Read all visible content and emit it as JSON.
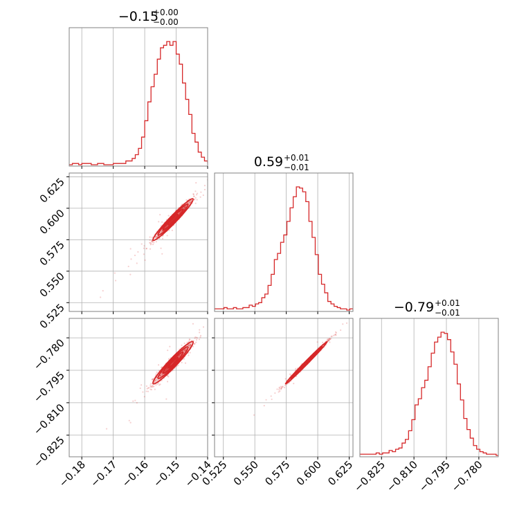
{
  "colors": {
    "accent": "#d62728",
    "grid": "#b0b0b0",
    "frame": "#808080"
  },
  "params": [
    {
      "title": {
        "value": "−0.15",
        "plus": "+0.00",
        "minus": "−0.00"
      },
      "range": [
        -0.184,
        -0.14
      ],
      "ticks": [
        {
          "v": -0.18,
          "label": "−0.18"
        },
        {
          "v": -0.17,
          "label": "−0.17"
        },
        {
          "v": -0.16,
          "label": "−0.16"
        },
        {
          "v": -0.15,
          "label": "−0.15"
        },
        {
          "v": -0.14,
          "label": "−0.14"
        }
      ],
      "center": -0.151,
      "sd": 0.0032
    },
    {
      "title": {
        "value": "0.59",
        "plus": "+0.01",
        "minus": "−0.01"
      },
      "range": [
        0.518,
        0.628
      ],
      "ticks": [
        {
          "v": 0.525,
          "label": "0.525"
        },
        {
          "v": 0.55,
          "label": "0.550"
        },
        {
          "v": 0.575,
          "label": "0.575"
        },
        {
          "v": 0.6,
          "label": "0.600"
        },
        {
          "v": 0.625,
          "label": "0.625"
        }
      ],
      "center": 0.591,
      "sd": 0.0083
    },
    {
      "title": {
        "value": "−0.79",
        "plus": "+0.01",
        "minus": "−0.01"
      },
      "range": [
        -0.835,
        -0.771
      ],
      "ticks": [
        {
          "v": -0.825,
          "label": "−0.825"
        },
        {
          "v": -0.81,
          "label": "−0.810"
        },
        {
          "v": -0.795,
          "label": "−0.795"
        },
        {
          "v": -0.78,
          "label": "−0.780"
        }
      ],
      "center": -0.7915,
      "sd": 0.0049
    }
  ],
  "chart_data": {
    "type": "corner",
    "title": "",
    "histograms": [
      {
        "param": 0,
        "bin_edges": [
          -0.184,
          -0.183,
          -0.182,
          -0.181,
          -0.18,
          -0.179,
          -0.178,
          -0.177,
          -0.176,
          -0.175,
          -0.174,
          -0.173,
          -0.172,
          -0.171,
          -0.17,
          -0.169,
          -0.168,
          -0.167,
          -0.166,
          -0.165,
          -0.164,
          -0.163,
          -0.162,
          -0.161,
          -0.16,
          -0.159,
          -0.158,
          -0.157,
          -0.156,
          -0.155,
          -0.154,
          -0.153,
          -0.152,
          -0.151,
          -0.15,
          -0.149,
          -0.148,
          -0.147,
          -0.146,
          -0.145,
          -0.144,
          -0.143,
          -0.142,
          -0.141,
          -0.14
        ],
        "counts": [
          0,
          1,
          1,
          0,
          1,
          1,
          1,
          0,
          0,
          1,
          1,
          0,
          0,
          0,
          1,
          1,
          1,
          1,
          3,
          3,
          5,
          8,
          13,
          22,
          35,
          50,
          62,
          72,
          84,
          93,
          95,
          98,
          95,
          98,
          88,
          80,
          65,
          52,
          40,
          25,
          18,
          10,
          6,
          3,
          1
        ]
      },
      {
        "param": 1,
        "bin_edges": [
          0.518,
          0.5205,
          0.523,
          0.5255,
          0.528,
          0.5305,
          0.533,
          0.5355,
          0.538,
          0.5405,
          0.543,
          0.5455,
          0.548,
          0.5505,
          0.553,
          0.5555,
          0.558,
          0.5605,
          0.563,
          0.5655,
          0.568,
          0.5705,
          0.573,
          0.5755,
          0.578,
          0.5805,
          0.583,
          0.5855,
          0.588,
          0.5905,
          0.593,
          0.5955,
          0.598,
          0.6005,
          0.603,
          0.6055,
          0.608,
          0.6105,
          0.613,
          0.6155,
          0.618,
          0.6205,
          0.623,
          0.6255,
          0.628
        ],
        "counts": [
          1,
          1,
          1,
          2,
          1,
          1,
          2,
          1,
          1,
          2,
          2,
          4,
          3,
          5,
          6,
          10,
          13,
          20,
          29,
          41,
          46,
          55,
          61,
          72,
          83,
          92,
          100,
          99,
          96,
          88,
          72,
          59,
          45,
          29,
          21,
          14,
          7,
          5,
          3,
          2,
          1,
          1,
          0,
          1
        ]
      },
      {
        "param": 2,
        "bin_edges": [
          -0.835,
          -0.8335,
          -0.832,
          -0.8305,
          -0.829,
          -0.8275,
          -0.826,
          -0.8245,
          -0.823,
          -0.8215,
          -0.82,
          -0.8185,
          -0.817,
          -0.8155,
          -0.814,
          -0.8125,
          -0.811,
          -0.8095,
          -0.808,
          -0.8065,
          -0.805,
          -0.8035,
          -0.802,
          -0.8005,
          -0.799,
          -0.7975,
          -0.796,
          -0.7945,
          -0.793,
          -0.7915,
          -0.79,
          -0.7885,
          -0.787,
          -0.7855,
          -0.784,
          -0.7825,
          -0.781,
          -0.7795,
          -0.778,
          -0.7765,
          -0.775,
          -0.7735,
          -0.772,
          -0.771
        ],
        "counts": [
          1,
          1,
          1,
          1,
          1,
          2,
          1,
          2,
          2,
          4,
          3,
          5,
          6,
          10,
          13,
          20,
          29,
          41,
          46,
          55,
          61,
          72,
          83,
          92,
          96,
          100,
          99,
          94,
          84,
          74,
          58,
          45,
          30,
          21,
          14,
          8,
          5,
          3,
          2,
          1,
          1,
          1,
          0
        ]
      }
    ],
    "pairs": [
      {
        "x_param": 0,
        "y_param": 1,
        "correlation": 0.97
      },
      {
        "x_param": 0,
        "y_param": 2,
        "correlation": 0.96
      },
      {
        "x_param": 1,
        "y_param": 2,
        "correlation": 0.995
      }
    ],
    "grid": true
  }
}
